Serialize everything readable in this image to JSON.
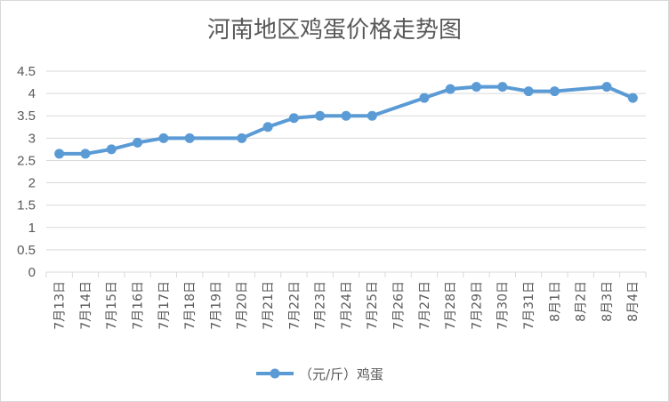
{
  "chart_data": {
    "type": "line",
    "title": "河南地区鸡蛋价格走势图",
    "xlabel": "",
    "ylabel": "",
    "ylim": [
      0,
      4.5
    ],
    "yticks": [
      "0",
      "0.5",
      "1",
      "1.5",
      "2",
      "2.5",
      "3",
      "3.5",
      "4",
      "4.5"
    ],
    "grid": true,
    "legend_position": "bottom",
    "categories": [
      "7月13日",
      "7月14日",
      "7月15日",
      "7月16日",
      "7月17日",
      "7月18日",
      "7月19日",
      "7月20日",
      "7月21日",
      "7月22日",
      "7月23日",
      "7月24日",
      "7月25日",
      "7月26日",
      "7月27日",
      "7月28日",
      "7月29日",
      "7月30日",
      "7月31日",
      "8月1日",
      "8月2日",
      "8月3日",
      "8月4日"
    ],
    "series": [
      {
        "name": "（元/斤）鸡蛋",
        "color": "#5b9bd5",
        "values": [
          2.65,
          2.65,
          2.75,
          2.9,
          3.0,
          3.0,
          null,
          3.0,
          3.25,
          3.45,
          3.5,
          3.5,
          3.5,
          null,
          3.9,
          4.1,
          4.15,
          4.15,
          4.05,
          4.05,
          null,
          4.15,
          3.9
        ]
      }
    ]
  }
}
